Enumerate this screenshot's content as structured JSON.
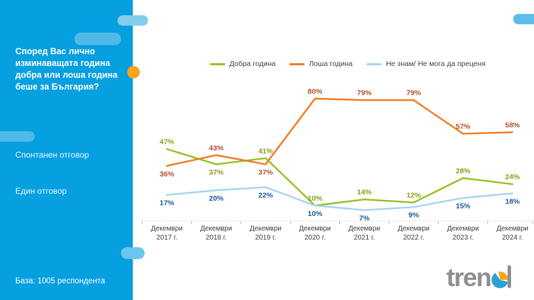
{
  "colors": {
    "sidebar_bg": "#069FE0",
    "pill_inner": "#4FBAE8",
    "pill_top_cross": "#82CCEE",
    "pill_bottom_cross": "#6CC5EC",
    "pill_top_right": "#5CBEE8",
    "dot_orange": "#F9A51B",
    "axis_line": "#C6C6C6",
    "axis_text": "#3C3C3C",
    "logo_gray": "#8E8E93"
  },
  "sidebar": {
    "title": "Според Вас лично изминаващата година добра или лоша година беше за България?",
    "answer_type": "Спонтанен отговор",
    "answer_count": "Един отговор",
    "base_label": "База: 1005 респондента"
  },
  "logo": {
    "name": "trend",
    "prefix": "tren"
  },
  "chart_data": {
    "type": "line",
    "title": "",
    "xlabel": "",
    "ylabel": "",
    "ylim": [
      0,
      100
    ],
    "grid": false,
    "legend_position": "top",
    "value_suffix": "%",
    "categories": [
      "Декември 2017 г.",
      "Декември 2018 г.",
      "Декември 2019 г.",
      "Декември 2020 г.",
      "Декември 2021 г.",
      "Декември 2022 г.",
      "Декември 2023 г.",
      "Декември 2024 г."
    ],
    "series": [
      {
        "name": "Добра година",
        "color": "#92C01E",
        "label_color": "#879E17",
        "values": [
          47,
          37,
          41,
          10,
          14,
          12,
          28,
          24
        ],
        "label_pos": [
          "above",
          "below",
          "above",
          "above",
          "above",
          "above",
          "above",
          "above"
        ]
      },
      {
        "name": "Лоша година",
        "color": "#F4781E",
        "label_color": "#B04F28",
        "values": [
          36,
          43,
          37,
          80,
          79,
          79,
          57,
          58
        ],
        "label_pos": [
          "below",
          "above",
          "below",
          "above",
          "above",
          "above",
          "above",
          "above"
        ]
      },
      {
        "name": "Не знам/ Не мога да преценя",
        "color": "#A5D3F2",
        "label_color": "#1C5B96",
        "values": [
          17,
          20,
          22,
          10,
          7,
          9,
          15,
          18
        ],
        "label_pos": [
          "below",
          "below",
          "below",
          "below",
          "below",
          "below",
          "below",
          "below"
        ]
      }
    ]
  }
}
